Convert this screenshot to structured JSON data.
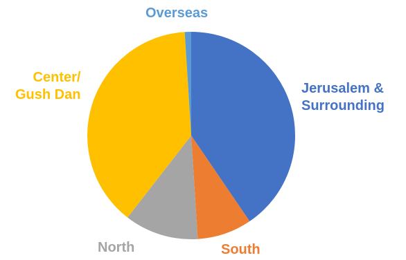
{
  "chart_data": {
    "type": "pie",
    "title": "",
    "slices": [
      {
        "label": "Jerusalem &\nSurrounding",
        "value": 40.5,
        "color": "#4472C4"
      },
      {
        "label": "South",
        "value": 8.5,
        "color": "#ED7D31"
      },
      {
        "label": "North",
        "value": 11.5,
        "color": "#A5A5A5"
      },
      {
        "label": "Center/\nGush Dan",
        "value": 38.5,
        "color": "#FFC000"
      },
      {
        "label": "Overseas",
        "value": 1.0,
        "color": "#5B9BD5"
      }
    ],
    "start_angle_deg": 0,
    "direction": "clockwise",
    "legend": "none",
    "label_position": "outside"
  }
}
